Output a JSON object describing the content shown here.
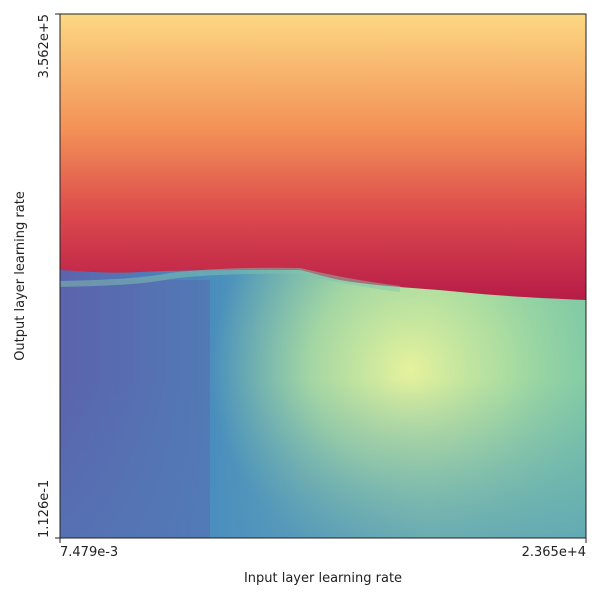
{
  "chart_data": {
    "type": "heatmap",
    "xlabel": "Input layer learning rate",
    "ylabel": "Output layer learning rate",
    "xscale": "log",
    "yscale": "log",
    "xlim": [
      {
        "value": 0.007479,
        "label": "7.479e-3"
      },
      {
        "value": 23650,
        "label": "2.365e+4"
      }
    ],
    "ylim": [
      {
        "value": 0.1126,
        "label": "1.126e-1"
      },
      {
        "value": 356200,
        "label": "3.562e+5"
      }
    ],
    "xticks": [
      {
        "value": 0.007479,
        "label": "7.479e-3"
      },
      {
        "value": 23650,
        "label": "2.365e+4"
      }
    ],
    "yticks": [
      {
        "value": 0.1126,
        "label": "1.126e-1"
      },
      {
        "value": 356200,
        "label": "3.562e+5"
      }
    ],
    "colormap": "Spectral"
  }
}
